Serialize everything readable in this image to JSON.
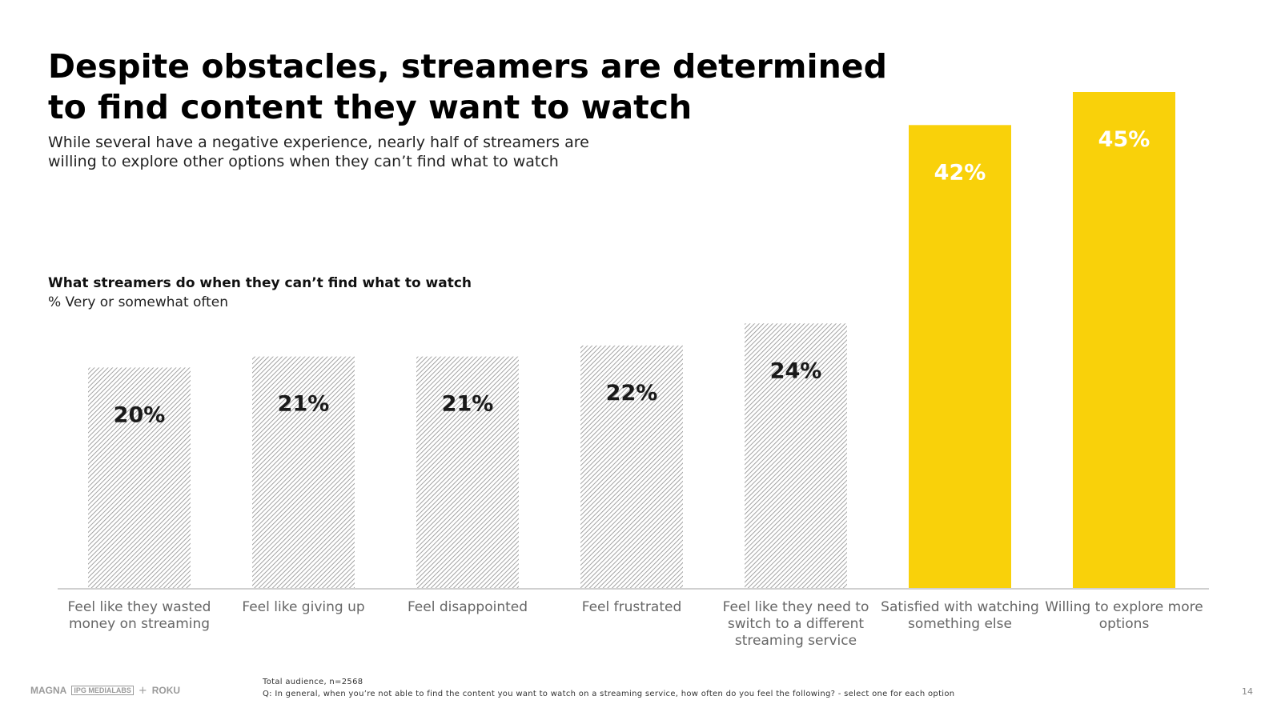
{
  "slide": {
    "title": "Despite obstacles, streamers are determined to find content they want to watch",
    "subtitle": "While several have a negative experience, nearly half of streamers are willing to explore other options when they can’t find what to watch",
    "footer_line1": "Total audience, n=2568",
    "footer_line2": "Q: In general, when you’re not able to find the content you want to watch on a streaming service, how often do you feel the following? - select one for each option",
    "page_number": "14",
    "logos": {
      "magna": "MAGNA",
      "ipg": "IPG MEDIALABS",
      "plus": "+",
      "roku": "ROKU"
    }
  },
  "chart_data": {
    "type": "bar",
    "title": "What streamers do when they can’t find what to watch",
    "subtitle": "% Very or somewhat often",
    "categories": [
      [
        "Feel like they wasted",
        "money on streaming"
      ],
      [
        "Feel like giving up"
      ],
      [
        "Feel disappointed"
      ],
      [
        "Feel frustrated"
      ],
      [
        "Feel like they need to",
        "switch to a different",
        "streaming service"
      ],
      [
        "Satisfied with watching",
        "something else"
      ],
      [
        "Willing to explore more",
        "options"
      ]
    ],
    "values": [
      20,
      21,
      21,
      22,
      24,
      42,
      45
    ],
    "labels": [
      "20%",
      "21%",
      "21%",
      "22%",
      "24%",
      "42%",
      "45%"
    ],
    "bar_styles": [
      "hatched",
      "hatched",
      "hatched",
      "hatched",
      "hatched",
      "solid",
      "solid"
    ],
    "colors": {
      "hatched_line": "#8c8c8c",
      "hatched_bg": "#ffffff",
      "solid": "#F9D10A",
      "solid_label": "#ffffff",
      "hatched_label": "#1a1a1a",
      "axis": "#d0d0d0",
      "category_text": "#666666"
    },
    "ylim": [
      0,
      45
    ],
    "grid": false
  }
}
